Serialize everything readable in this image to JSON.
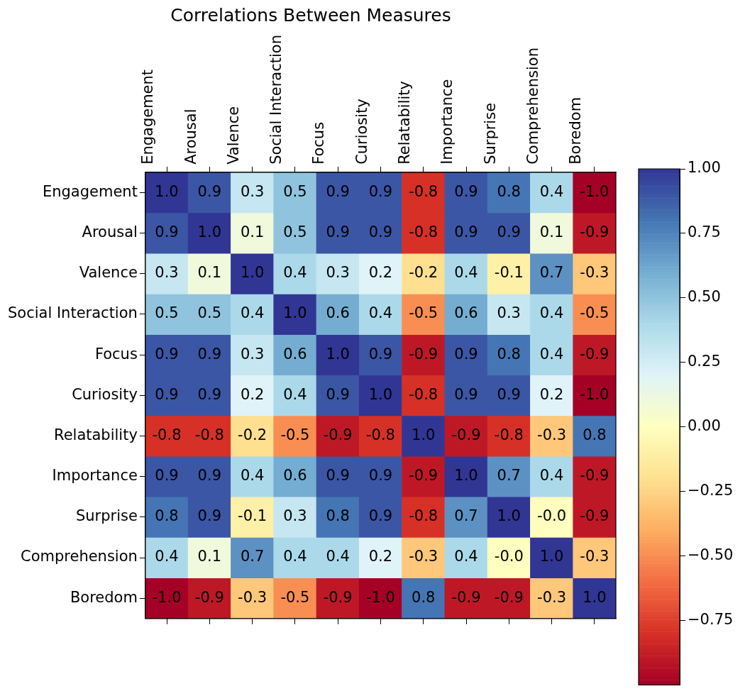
{
  "chart_data": {
    "type": "heatmap",
    "title": "Correlations Between Measures",
    "categories": [
      "Engagement",
      "Arousal",
      "Valence",
      "Social Interaction",
      "Focus",
      "Curiosity",
      "Relatability",
      "Importance",
      "Surprise",
      "Comprehension",
      "Boredom"
    ],
    "y_categories": [
      "Engagement",
      "Arousal",
      "Valence",
      "Social Interaction",
      "Focus",
      "Curiosity",
      "Relatability",
      "Importance",
      "Surprise",
      "Comprehension",
      "Boredom"
    ],
    "cells": [
      [
        1.0,
        0.9,
        0.3,
        0.5,
        0.9,
        0.9,
        -0.8,
        0.9,
        0.8,
        0.4,
        -1.0
      ],
      [
        0.9,
        1.0,
        0.1,
        0.5,
        0.9,
        0.9,
        -0.8,
        0.9,
        0.9,
        0.1,
        -0.9
      ],
      [
        0.3,
        0.1,
        1.0,
        0.4,
        0.3,
        0.2,
        -0.2,
        0.4,
        -0.1,
        0.7,
        -0.3
      ],
      [
        0.5,
        0.5,
        0.4,
        1.0,
        0.6,
        0.4,
        -0.5,
        0.6,
        0.3,
        0.4,
        -0.5
      ],
      [
        0.9,
        0.9,
        0.3,
        0.6,
        1.0,
        0.9,
        -0.9,
        0.9,
        0.8,
        0.4,
        -0.9
      ],
      [
        0.9,
        0.9,
        0.2,
        0.4,
        0.9,
        1.0,
        -0.8,
        0.9,
        0.9,
        0.2,
        -1.0
      ],
      [
        -0.8,
        -0.8,
        -0.2,
        -0.5,
        -0.9,
        -0.8,
        1.0,
        -0.9,
        -0.8,
        -0.3,
        0.8
      ],
      [
        0.9,
        0.9,
        0.4,
        0.6,
        0.9,
        0.9,
        -0.9,
        1.0,
        0.7,
        0.4,
        -0.9
      ],
      [
        0.8,
        0.9,
        -0.1,
        0.3,
        0.8,
        0.9,
        -0.8,
        0.7,
        1.0,
        0,
        -0.9
      ],
      [
        0.4,
        0.1,
        0.7,
        0.4,
        0.4,
        0.2,
        -0.3,
        0.4,
        0,
        1.0,
        -0.3
      ],
      [
        -1.0,
        -0.9,
        -0.3,
        -0.5,
        -0.9,
        -1.0,
        0.8,
        -0.9,
        -0.9,
        -0.3,
        1.0
      ]
    ],
    "cell_labels": [
      [
        "1.0",
        "0.9",
        "0.3",
        "0.5",
        "0.9",
        "0.9",
        "-0.8",
        "0.9",
        "0.8",
        "0.4",
        "-1.0"
      ],
      [
        "0.9",
        "1.0",
        "0.1",
        "0.5",
        "0.9",
        "0.9",
        "-0.8",
        "0.9",
        "0.9",
        "0.1",
        "-0.9"
      ],
      [
        "0.3",
        "0.1",
        "1.0",
        "0.4",
        "0.3",
        "0.2",
        "-0.2",
        "0.4",
        "-0.1",
        "0.7",
        "-0.3"
      ],
      [
        "0.5",
        "0.5",
        "0.4",
        "1.0",
        "0.6",
        "0.4",
        "-0.5",
        "0.6",
        "0.3",
        "0.4",
        "-0.5"
      ],
      [
        "0.9",
        "0.9",
        "0.3",
        "0.6",
        "1.0",
        "0.9",
        "-0.9",
        "0.9",
        "0.8",
        "0.4",
        "-0.9"
      ],
      [
        "0.9",
        "0.9",
        "0.2",
        "0.4",
        "0.9",
        "1.0",
        "-0.8",
        "0.9",
        "0.9",
        "0.2",
        "-1.0"
      ],
      [
        "-0.8",
        "-0.8",
        "-0.2",
        "-0.5",
        "-0.9",
        "-0.8",
        "1.0",
        "-0.9",
        "-0.8",
        "-0.3",
        "0.8"
      ],
      [
        "0.9",
        "0.9",
        "0.4",
        "0.6",
        "0.9",
        "0.9",
        "-0.9",
        "1.0",
        "0.7",
        "0.4",
        "-0.9"
      ],
      [
        "0.8",
        "0.9",
        "-0.1",
        "0.3",
        "0.8",
        "0.9",
        "-0.8",
        "0.7",
        "1.0",
        "-0.0",
        "-0.9"
      ],
      [
        "0.4",
        "0.1",
        "0.7",
        "0.4",
        "0.4",
        "0.2",
        "-0.3",
        "0.4",
        "-0.0",
        "1.0",
        "-0.3"
      ],
      [
        "-1.0",
        "-0.9",
        "-0.3",
        "-0.5",
        "-0.9",
        "-1.0",
        "0.8",
        "-0.9",
        "-0.9",
        "-0.3",
        "1.0"
      ]
    ],
    "clim": [
      -1,
      1
    ],
    "cticks": [
      {
        "value": 1,
        "label": "1.00"
      },
      {
        "value": 0.75,
        "label": "0.75"
      },
      {
        "value": 0.5,
        "label": "0.50"
      },
      {
        "value": 0.25,
        "label": "0.25"
      },
      {
        "value": 0,
        "label": "0.00"
      },
      {
        "value": -0.25,
        "label": "−0.25"
      },
      {
        "value": -0.5,
        "label": "−0.50"
      },
      {
        "value": -0.75,
        "label": "−0.75"
      }
    ]
  }
}
